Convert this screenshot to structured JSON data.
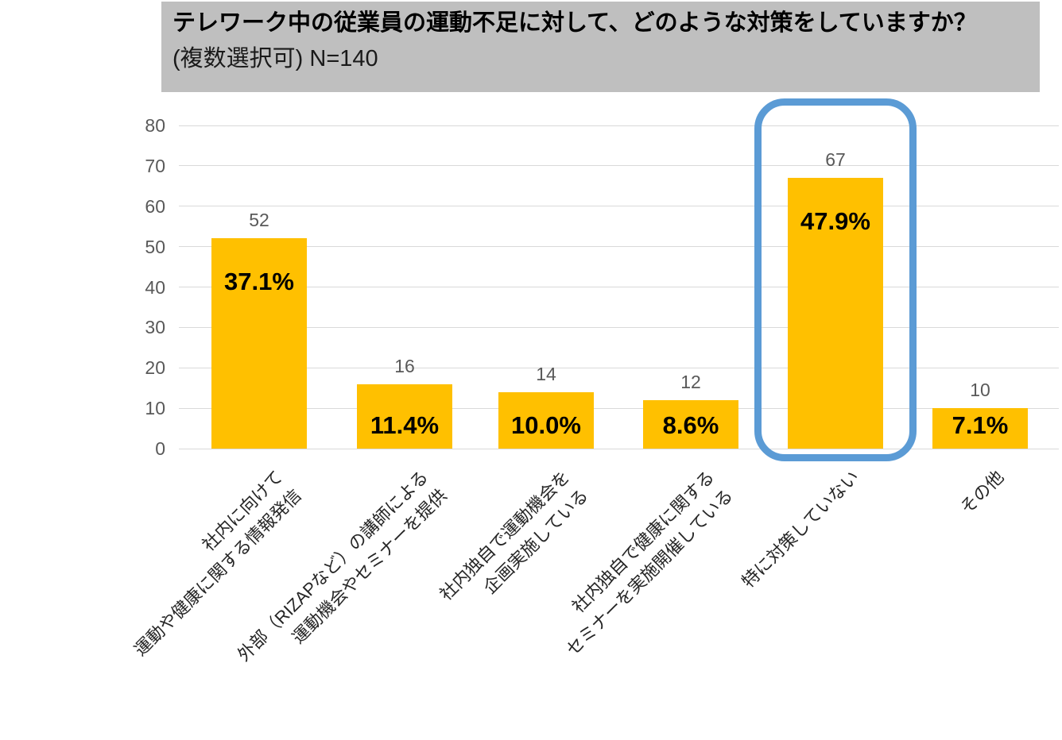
{
  "title": {
    "line1": "テレワーク中の従業員の運動不足に対して、どのような対策をしていますか？",
    "line2": "(複数選択可) N=140"
  },
  "chart_data": {
    "type": "bar",
    "title": "テレワーク中の従業員の運動不足に対して、どのような対策をしていますか？",
    "subtitle": "(複数選択可) N=140",
    "n": 140,
    "categories": [
      "社内に向けて\n運動や健康に関する情報発信",
      "外部（RIZAPなど）の講師による\n運動機会やセミナーを提供",
      "社内独自で運動機会を\n企画実施している",
      "社内独自で健康に関する\nセミナーを実施開催している",
      "特に対策していない",
      "その他"
    ],
    "values": [
      52,
      16,
      14,
      12,
      67,
      10
    ],
    "percent_labels": [
      "37.1%",
      "11.4%",
      "10.0%",
      "8.6%",
      "47.9%",
      "7.1%"
    ],
    "xlabel": "",
    "ylabel": "",
    "ylim": [
      0,
      80
    ],
    "yticks": [
      0,
      10,
      20,
      30,
      40,
      50,
      60,
      70,
      80
    ],
    "grid": true,
    "legend": "none",
    "bar_color": "#FFC000",
    "gridline_color": "#D9D9D9",
    "tick_label_color": "#595959",
    "value_label_color": "#595959",
    "percent_label_color": "#000000",
    "title_banner_color": "#BFBFBF",
    "highlight": {
      "category_index": 4,
      "color": "#5B9BD5",
      "shape": "rounded-rectangle-outline"
    }
  }
}
